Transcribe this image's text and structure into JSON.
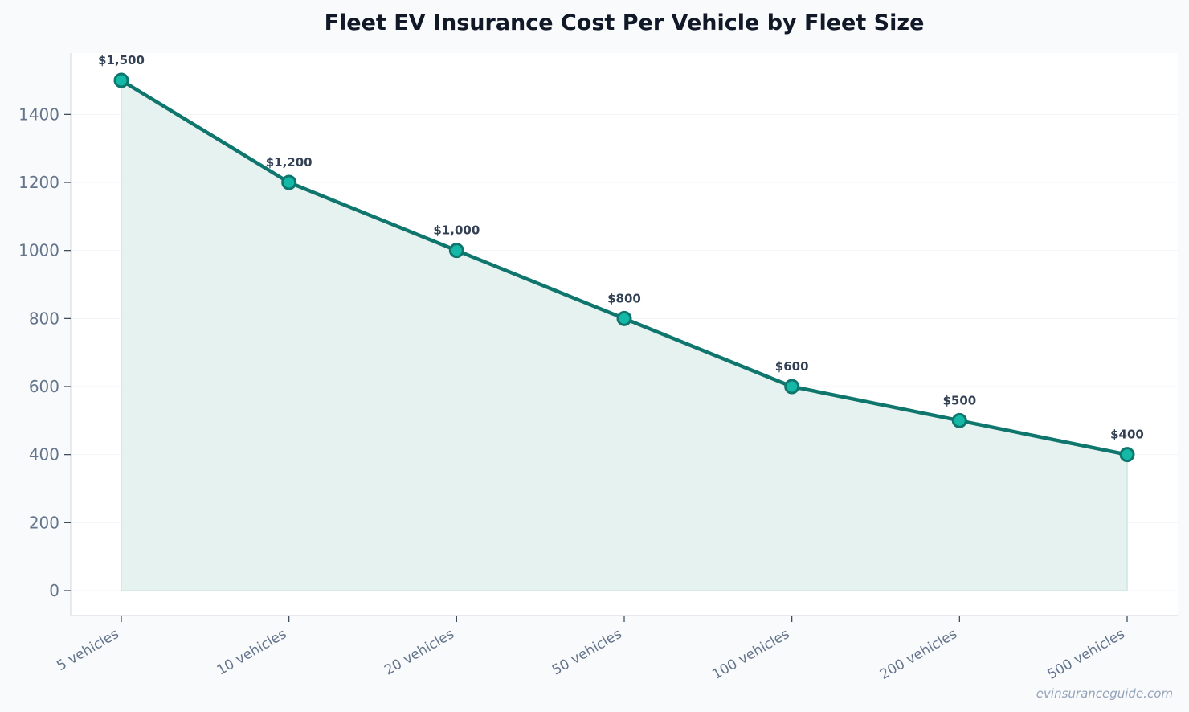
{
  "chart_data": {
    "type": "area",
    "title": "Fleet EV Insurance Cost Per Vehicle by Fleet Size",
    "xlabel": "",
    "ylabel": "",
    "categories": [
      "5 vehicles",
      "10 vehicles",
      "20 vehicles",
      "50 vehicles",
      "100 vehicles",
      "200 vehicles",
      "500 vehicles"
    ],
    "values": [
      1500,
      1200,
      1000,
      800,
      600,
      500,
      400
    ],
    "data_labels": [
      "$1,500",
      "$1,200",
      "$1,000",
      "$800",
      "$600",
      "$500",
      "$400"
    ],
    "ylim": [
      0,
      1500
    ],
    "yticks": [
      0,
      200,
      400,
      600,
      800,
      1000,
      1200,
      1400
    ],
    "grid": true,
    "legend": "none"
  },
  "colors": {
    "line": "#0f766e",
    "marker_fill": "#14b8a6",
    "area_fill": "#e6f2ef",
    "area_edge": "#cfe6e0",
    "grid": "#f1f5f4",
    "axis": "#d7dee5",
    "background": "#f8fafc",
    "plot_background": "#ffffff"
  },
  "watermark": "evinsuranceguide.com"
}
